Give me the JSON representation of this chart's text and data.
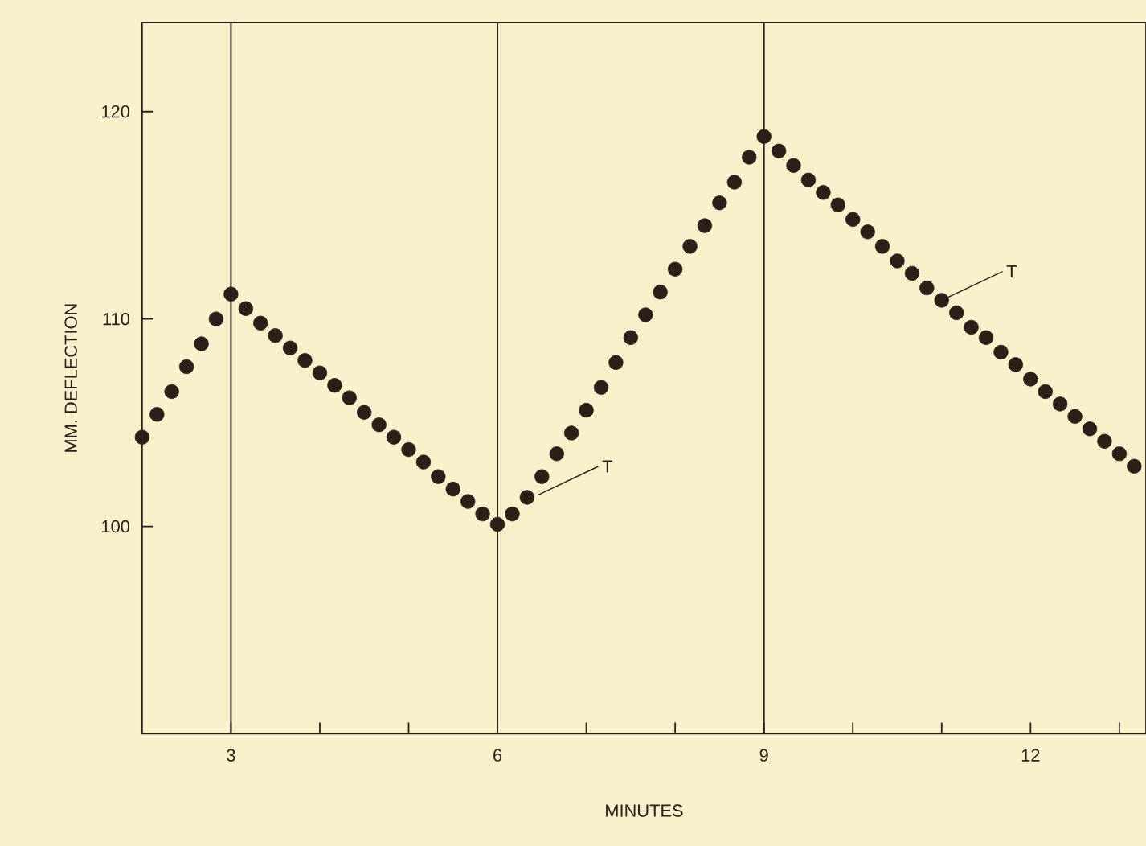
{
  "chart_data": {
    "type": "scatter",
    "xlabel": "MINUTES",
    "ylabel": "MM. DEFLECTION",
    "x": [
      2,
      2.167,
      2.333,
      2.5,
      2.667,
      2.833,
      3,
      3.167,
      3.333,
      3.5,
      3.667,
      3.833,
      4,
      4.167,
      4.333,
      4.5,
      4.667,
      4.833,
      5,
      5.167,
      5.333,
      5.5,
      5.667,
      5.833,
      6,
      6.167,
      6.333,
      6.5,
      6.667,
      6.833,
      7,
      7.167,
      7.333,
      7.5,
      7.667,
      7.833,
      8,
      8.167,
      8.333,
      8.5,
      8.667,
      8.833,
      9,
      9.167,
      9.333,
      9.5,
      9.667,
      9.833,
      10,
      10.167,
      10.333,
      10.5,
      10.667,
      10.833,
      11,
      11.167,
      11.333,
      11.5,
      11.667,
      11.833,
      12,
      12.167,
      12.333,
      12.5,
      12.667,
      12.833,
      13,
      13.167
    ],
    "series": [
      {
        "color": "#2a2018",
        "values": [
          104.3,
          105.4,
          106.5,
          107.7,
          108.8,
          110.0,
          111.2,
          110.5,
          109.8,
          109.2,
          108.6,
          108.0,
          107.4,
          106.8,
          106.2,
          105.5,
          104.9,
          104.3,
          103.7,
          103.1,
          102.4,
          101.8,
          101.2,
          100.6,
          100.1,
          100.6,
          101.4,
          102.4,
          103.5,
          104.5,
          105.6,
          106.7,
          107.9,
          109.1,
          110.2,
          111.3,
          112.4,
          113.5,
          114.5,
          115.6,
          116.6,
          117.8,
          118.8,
          118.1,
          117.4,
          116.7,
          116.1,
          115.5,
          114.8,
          114.2,
          113.5,
          112.8,
          112.2,
          111.5,
          110.9,
          110.3,
          109.6,
          109.1,
          108.4,
          107.8,
          107.1,
          106.5,
          105.9,
          105.3,
          104.7,
          104.1,
          103.5,
          102.9
        ]
      }
    ],
    "marker": "circle",
    "xlim": [
      2,
      13.3
    ],
    "ylim": [
      90,
      124.3
    ],
    "xticks": [
      3,
      {
        "value": 4,
        "label": null
      },
      {
        "value": 5,
        "label": null
      },
      6,
      {
        "value": 7,
        "label": null
      },
      {
        "value": 8,
        "label": null
      },
      9,
      {
        "value": 10,
        "label": null
      },
      {
        "value": 11,
        "label": null
      },
      12,
      {
        "value": 13,
        "label": null
      }
    ],
    "yticks": [
      100,
      110,
      120
    ],
    "ref_lines": [
      {
        "axis": "x",
        "value": 3,
        "color": "#2a2018"
      },
      {
        "axis": "x",
        "value": 6,
        "color": "#2a2018"
      },
      {
        "axis": "x",
        "value": 9,
        "color": "#2a2018"
      }
    ],
    "annotations": [
      {
        "text": "T",
        "x": 6.45,
        "y": 101.5
      },
      {
        "text": "T",
        "x": 11,
        "y": 110.9
      }
    ]
  }
}
